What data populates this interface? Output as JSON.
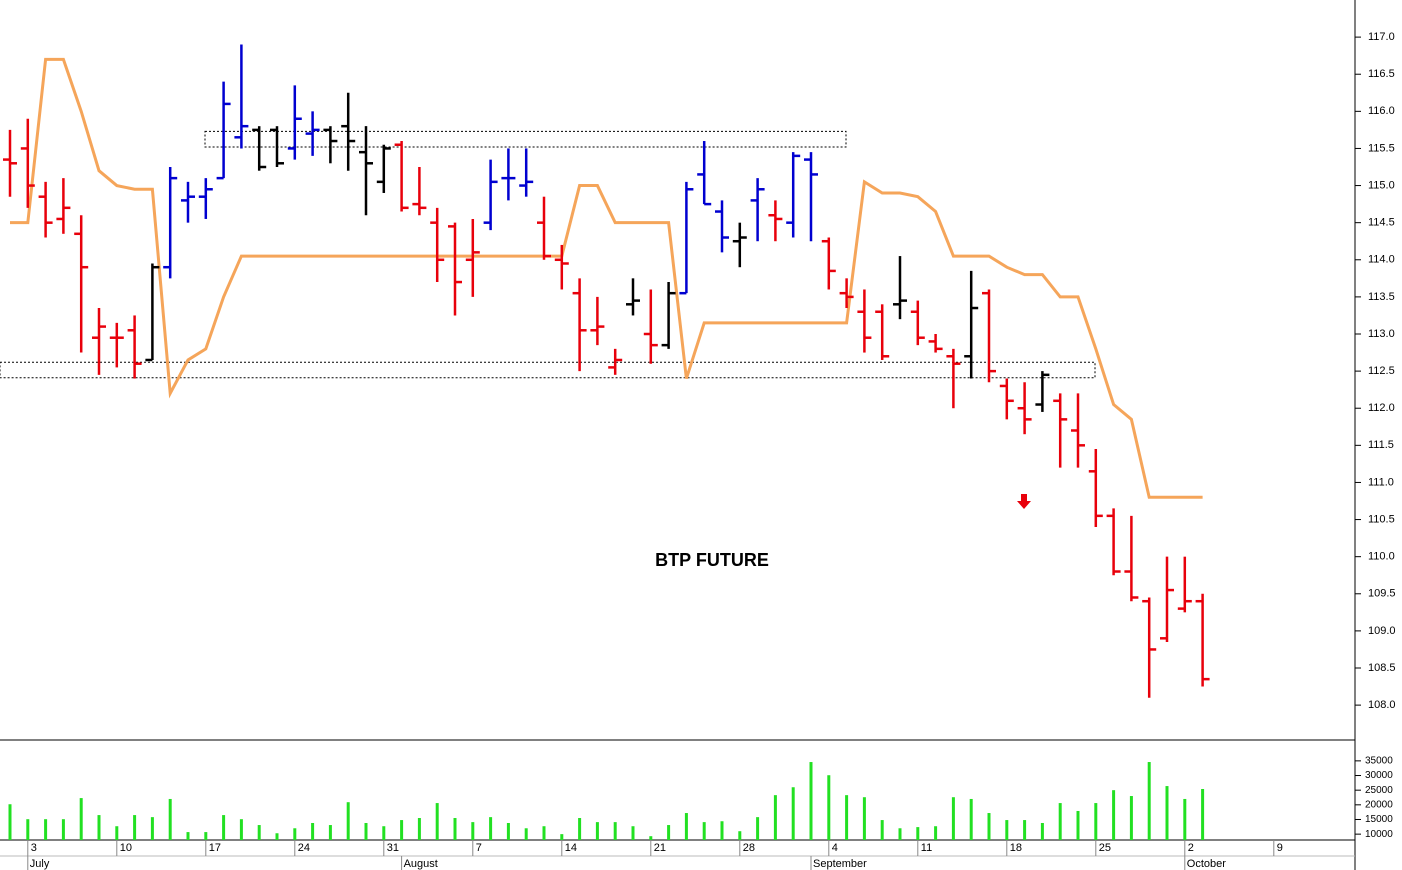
{
  "chart_data": {
    "type": "ohlc",
    "title": "BTP FUTURE",
    "categories": [
      null,
      "3",
      null,
      null,
      null,
      null,
      "10",
      null,
      null,
      null,
      null,
      "17",
      null,
      null,
      null,
      null,
      "24",
      null,
      null,
      null,
      null,
      "31",
      null,
      null,
      null,
      null,
      "7",
      null,
      null,
      null,
      null,
      "14",
      null,
      null,
      null,
      null,
      "21",
      null,
      null,
      null,
      null,
      "28",
      null,
      null,
      null,
      null,
      "4",
      null,
      null,
      null,
      null,
      "11",
      null,
      null,
      null,
      null,
      "18",
      null,
      null,
      null,
      null,
      "25",
      null,
      null,
      null,
      null,
      "2",
      null,
      null,
      null,
      null,
      "9",
      null,
      null,
      null,
      null
    ],
    "months": [
      "July",
      "August",
      "September",
      "October"
    ],
    "open": [
      115.35,
      115.5,
      114.85,
      114.55,
      114.35,
      112.95,
      112.95,
      113.05,
      112.65,
      113.9,
      114.8,
      114.85,
      115.1,
      115.65,
      115.75,
      115.75,
      115.5,
      115.7,
      115.75,
      115.8,
      115.45,
      115.05,
      115.55,
      114.75,
      114.5,
      114.45,
      114.0,
      114.5,
      115.1,
      115.0,
      114.5,
      114.0,
      113.55,
      113.05,
      112.55,
      113.4,
      113.0,
      112.85,
      113.55,
      115.15,
      114.65,
      114.25,
      114.8,
      114.6,
      114.5,
      115.35,
      114.25,
      113.55,
      113.3,
      113.3,
      113.4,
      113.3,
      112.9,
      112.7,
      112.7,
      113.55,
      112.3,
      112.0,
      112.05,
      112.1,
      111.7,
      111.15,
      110.55,
      109.8,
      109.4,
      108.9,
      109.3,
      109.4,
      null,
      null,
      null,
      null,
      null,
      null,
      null,
      null
    ],
    "high": [
      115.75,
      115.9,
      115.05,
      115.1,
      114.6,
      113.35,
      113.15,
      113.25,
      113.95,
      115.25,
      115.05,
      115.1,
      116.4,
      116.9,
      115.8,
      115.8,
      116.35,
      116.0,
      115.8,
      116.25,
      115.8,
      115.55,
      115.6,
      115.25,
      114.7,
      114.5,
      114.55,
      115.35,
      115.5,
      115.5,
      114.85,
      114.2,
      113.75,
      113.5,
      112.8,
      113.75,
      113.6,
      113.7,
      115.05,
      115.6,
      114.8,
      114.5,
      115.1,
      114.8,
      115.45,
      115.45,
      114.3,
      113.75,
      113.6,
      113.4,
      114.05,
      113.45,
      113.0,
      112.8,
      113.85,
      113.6,
      112.4,
      112.35,
      112.5,
      112.2,
      112.2,
      111.45,
      110.65,
      110.55,
      109.45,
      110.0,
      110.0,
      109.5,
      null,
      null,
      null,
      null,
      null,
      null,
      null,
      null
    ],
    "low": [
      114.85,
      114.7,
      114.3,
      114.35,
      112.75,
      112.45,
      112.55,
      112.4,
      112.65,
      113.75,
      114.5,
      114.55,
      115.1,
      115.5,
      115.2,
      115.25,
      115.35,
      115.4,
      115.3,
      115.2,
      114.6,
      114.9,
      114.65,
      114.6,
      113.7,
      113.25,
      113.5,
      114.4,
      114.8,
      114.85,
      114.0,
      113.6,
      112.5,
      112.85,
      112.45,
      113.25,
      112.6,
      112.8,
      113.55,
      114.75,
      114.1,
      113.9,
      114.25,
      114.25,
      114.3,
      114.25,
      113.6,
      113.35,
      112.75,
      112.65,
      113.2,
      112.85,
      112.75,
      112.0,
      112.4,
      112.35,
      111.85,
      111.65,
      111.95,
      111.2,
      111.2,
      110.4,
      109.75,
      109.4,
      108.1,
      108.85,
      109.25,
      108.25,
      null,
      null,
      null,
      null,
      null,
      null,
      null,
      null
    ],
    "close": [
      115.3,
      115.0,
      114.5,
      114.7,
      113.9,
      113.1,
      112.95,
      112.6,
      113.9,
      115.1,
      114.85,
      114.95,
      116.1,
      115.8,
      115.25,
      115.3,
      115.9,
      115.75,
      115.6,
      115.6,
      115.3,
      115.5,
      114.7,
      114.7,
      114.0,
      113.7,
      114.1,
      115.05,
      115.1,
      115.05,
      114.05,
      113.95,
      113.05,
      113.1,
      112.65,
      113.45,
      112.85,
      113.55,
      114.95,
      114.75,
      114.3,
      114.3,
      114.95,
      114.55,
      115.4,
      115.15,
      113.85,
      113.5,
      112.95,
      112.7,
      113.45,
      112.95,
      112.8,
      112.6,
      113.35,
      112.5,
      112.1,
      111.85,
      112.45,
      111.85,
      111.5,
      110.55,
      109.8,
      109.45,
      108.75,
      109.55,
      109.4,
      108.35,
      null,
      null,
      null,
      null,
      null,
      null,
      null,
      null
    ],
    "bar_colors": [
      "#e8000b",
      "#e8000b",
      "#e8000b",
      "#e8000b",
      "#e8000b",
      "#e8000b",
      "#e8000b",
      "#e8000b",
      "#000000",
      "#0000d0",
      "#0000d0",
      "#0000d0",
      "#0000d0",
      "#0000d0",
      "#000000",
      "#000000",
      "#0000d0",
      "#0000d0",
      "#000000",
      "#000000",
      "#000000",
      "#000000",
      "#e8000b",
      "#e8000b",
      "#e8000b",
      "#e8000b",
      "#e8000b",
      "#0000d0",
      "#0000d0",
      "#0000d0",
      "#e8000b",
      "#e8000b",
      "#e8000b",
      "#e8000b",
      "#e8000b",
      "#000000",
      "#e8000b",
      "#000000",
      "#0000d0",
      "#0000d0",
      "#0000d0",
      "#000000",
      "#0000d0",
      "#e8000b",
      "#0000d0",
      "#0000d0",
      "#e8000b",
      "#e8000b",
      "#e8000b",
      "#e8000b",
      "#000000",
      "#e8000b",
      "#e8000b",
      "#e8000b",
      "#000000",
      "#e8000b",
      "#e8000b",
      "#e8000b",
      "#000000",
      "#e8000b",
      "#e8000b",
      "#e8000b",
      "#e8000b",
      "#e8000b",
      "#e8000b",
      "#e8000b",
      "#e8000b",
      "#e8000b",
      null,
      null,
      null,
      null,
      null,
      null,
      null,
      null
    ],
    "line": {
      "color": "#f5a55a",
      "values": [
        114.5,
        114.5,
        116.7,
        116.7,
        116.0,
        115.2,
        115.0,
        114.95,
        114.95,
        112.2,
        112.65,
        112.8,
        113.5,
        114.05,
        114.05,
        114.05,
        114.05,
        114.05,
        114.05,
        114.05,
        114.05,
        114.05,
        114.05,
        114.05,
        114.05,
        114.05,
        114.05,
        114.05,
        114.05,
        114.05,
        114.05,
        114.05,
        115.0,
        115.0,
        114.5,
        114.5,
        114.5,
        114.5,
        112.4,
        113.15,
        113.15,
        113.15,
        113.15,
        113.15,
        113.15,
        113.15,
        113.15,
        113.15,
        115.05,
        114.9,
        114.9,
        114.85,
        114.65,
        114.05,
        114.05,
        114.05,
        113.9,
        113.8,
        113.8,
        113.5,
        113.5,
        112.8,
        112.05,
        111.85,
        110.8,
        110.8,
        110.8,
        110.8,
        null,
        null,
        null,
        null,
        null,
        null,
        null,
        null
      ]
    },
    "zones": [
      [
        115.52,
        115.73
      ],
      [
        112.41,
        112.62
      ]
    ],
    "ylim": [
      107.53,
      117.5
    ],
    "yticks": [
      {
        "value": 108,
        "label": "108.0"
      },
      108.5,
      {
        "value": 109,
        "label": "109.0"
      },
      109.5,
      {
        "value": 110,
        "label": "110.0"
      },
      110.5,
      {
        "value": 111,
        "label": "111.0"
      },
      111.5,
      {
        "value": 112,
        "label": "112.0"
      },
      112.5,
      {
        "value": 113,
        "label": "113.0"
      },
      113.5,
      {
        "value": 114,
        "label": "114.0"
      },
      114.5,
      {
        "value": 115,
        "label": "115.0"
      },
      115.5,
      {
        "value": 116,
        "label": "116.0"
      },
      116.5,
      {
        "value": 117,
        "label": "117.0"
      }
    ],
    "volume": {
      "color": "#22e022",
      "values": [
        20200,
        15100,
        15100,
        15100,
        22300,
        16500,
        12700,
        16500,
        15800,
        22000,
        10700,
        10700,
        16500,
        15100,
        13100,
        10300,
        12000,
        13800,
        13100,
        20900,
        13800,
        12700,
        14800,
        15500,
        20600,
        15500,
        14100,
        15800,
        13800,
        12000,
        12700,
        10000,
        15500,
        14100,
        14100,
        12700,
        9300,
        13100,
        17200,
        14100,
        14400,
        11000,
        15800,
        23300,
        26000,
        34600,
        30100,
        23300,
        22600,
        14800,
        12000,
        12400,
        12700,
        22600,
        22000,
        17200,
        14800,
        14800,
        13800,
        20600,
        17900,
        20600,
        25000,
        23000,
        34600,
        26400,
        22000,
        25400,
        null,
        null,
        null,
        null,
        null,
        null,
        null,
        null
      ],
      "ylim": [
        8000,
        37000
      ],
      "yticks": [
        10000,
        15000,
        20000,
        25000,
        30000,
        35000
      ]
    }
  }
}
